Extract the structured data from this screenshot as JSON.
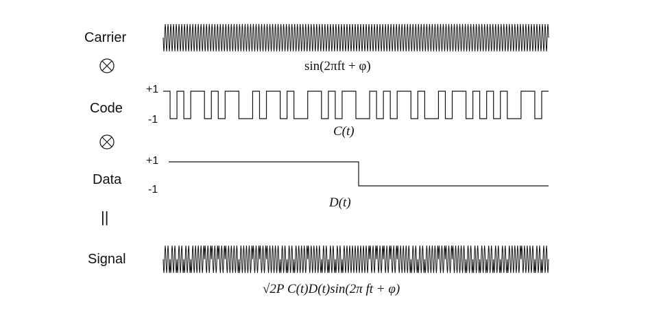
{
  "rows": {
    "carrier": {
      "label": "Carrier",
      "formula": "sin(2πft + φ)"
    },
    "code": {
      "label": "Code",
      "formula": "C(t)",
      "level_high": "+1",
      "level_low": "-1"
    },
    "data": {
      "label": "Data",
      "formula": "D(t)",
      "level_high": "+1",
      "level_low": "-1"
    },
    "signal": {
      "label": "Signal",
      "formula": "√2P C(t)D(t)sin(2π ft + φ)"
    }
  },
  "operators": {
    "multiply_1": "multiply-icon",
    "multiply_2": "multiply-icon",
    "equals": "||"
  },
  "signals": {
    "code_chips": [
      1,
      0,
      1,
      0,
      1,
      1,
      0,
      1,
      0,
      1,
      1,
      0,
      0,
      1,
      0,
      1,
      1,
      0,
      1,
      0,
      0,
      1,
      1,
      0,
      1,
      0,
      1,
      1,
      0,
      0,
      1,
      0,
      1,
      0,
      1,
      1,
      0,
      1,
      0,
      0,
      1,
      0,
      1,
      1,
      0,
      1,
      0,
      1,
      0,
      1,
      0,
      0,
      1,
      1,
      0,
      1
    ],
    "data_bits": [
      1,
      0
    ]
  },
  "colors": {
    "ink": "#111111",
    "background": "#ffffff"
  }
}
